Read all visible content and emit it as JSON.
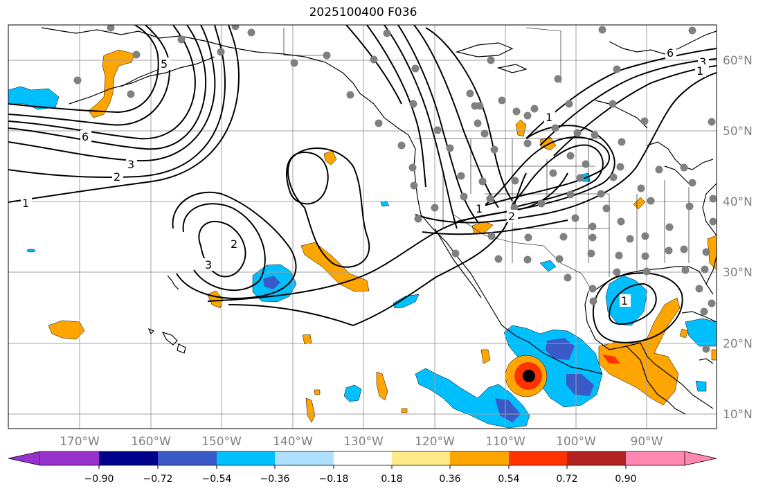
{
  "title": "2025100400 F036",
  "lon_labels": [
    "170°W",
    "160°W",
    "150°W",
    "140°W",
    "130°W",
    "120°W",
    "110°W",
    "100°W",
    "90°W"
  ],
  "lat_labels": [
    "60°N",
    "50°N",
    "40°N",
    "30°N",
    "20°N",
    "10°N"
  ],
  "contour_labels": [
    "6",
    "3",
    "2",
    "1",
    "5",
    "2",
    "3",
    "1",
    "2",
    "1",
    "1",
    "6",
    "3",
    "1"
  ],
  "colorbar": {
    "ticks": [
      "−0.90",
      "−0.72",
      "−0.54",
      "−0.36",
      "−0.18",
      "0.18",
      "0.36",
      "0.54",
      "0.72",
      "0.90"
    ],
    "colors": [
      "#9932cc",
      "#00008b",
      "#3a5bc7",
      "#00bfff",
      "#aee0ff",
      "#ffffff",
      "#ffeb8a",
      "#ffa500",
      "#ff3300",
      "#b22222",
      "#ff88b0"
    ]
  },
  "shading_colors": {
    "neg_light": "#aee0ff",
    "neg": "#00bfff",
    "neg_strong": "#3a5bc7",
    "pos_light": "#ffeb8a",
    "pos": "#ffa500",
    "pos_strong": "#ff3300",
    "center": "#000000"
  },
  "station_color": "#808080"
}
